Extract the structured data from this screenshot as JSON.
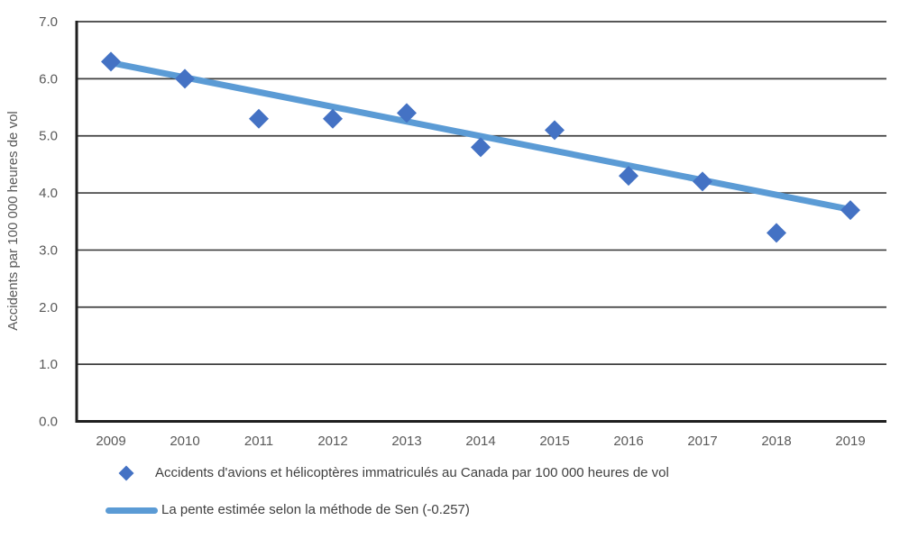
{
  "chart_data": {
    "type": "scatter",
    "categories": [
      "2009",
      "2010",
      "2011",
      "2012",
      "2013",
      "2014",
      "2015",
      "2016",
      "2017",
      "2018",
      "2019"
    ],
    "series": [
      {
        "name": "Accidents d'avions et hélicoptères immatriculés au Canada par 100 000 heures de vol",
        "type": "scatter",
        "marker": "diamond",
        "color": "#4472C4",
        "values": [
          6.3,
          6.0,
          5.3,
          5.3,
          5.4,
          4.8,
          5.1,
          4.3,
          4.2,
          3.3,
          3.7
        ]
      },
      {
        "name": "La pente estimée selon la méthode de Sen (-0.257)",
        "type": "trendline",
        "color": "#5B9BD5",
        "slope": -0.257,
        "start_value": 6.28,
        "end_value": 3.71
      }
    ],
    "title": "",
    "xlabel": "",
    "ylabel": "Accidents par 100 000 heures de vol",
    "ylim": [
      0,
      7
    ],
    "y_tick_step": 1,
    "y_tick_labels": [
      "0.0",
      "1.0",
      "2.0",
      "3.0",
      "4.0",
      "5.0",
      "6.0",
      "7.0"
    ],
    "grid": "horizontal",
    "grid_color": "#3f3f3f",
    "axis_color": "#1f1f1f",
    "tick_color": "#595959",
    "legend_text_color": "#404040",
    "legend_position": "bottom-left"
  }
}
